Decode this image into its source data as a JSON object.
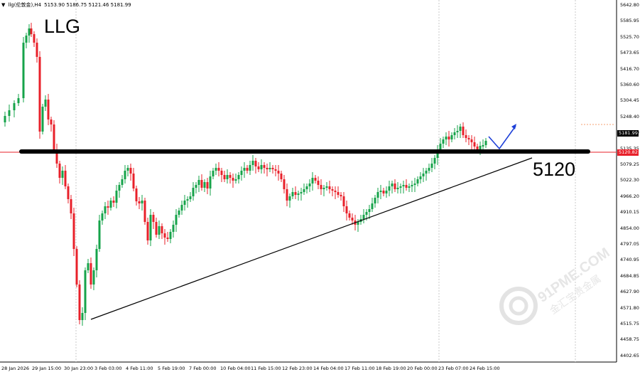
{
  "header": {
    "menu_glyph": "▼",
    "symbol_info": "llg(伦敦金),H4",
    "ohlc": "5153.90 5186.75 5121.46 5181.99"
  },
  "annotations": {
    "symbol_label": "LLG",
    "level_label": "5120"
  },
  "price_axis": {
    "ticks": [
      "5642.80",
      "5585.95",
      "5525.70",
      "5473.65",
      "5416.70",
      "5360.60",
      "5304.45",
      "5248.40",
      "5191.70",
      "5135.35",
      "5079.25",
      "5022.30",
      "4966.20",
      "4910.15",
      "4854.00",
      "4797.05",
      "4740.95",
      "4684.85",
      "4627.90",
      "4571.80",
      "4515.75",
      "4458.75",
      "4402.65"
    ],
    "current_price": "5181.99",
    "line_price": "5120.82"
  },
  "time_axis": {
    "ticks": [
      "28 Jan 2026",
      "29 Jan 15:00",
      "30 Jan 23:00",
      "3 Feb 03:00",
      "4 Feb 11:00",
      "5 Feb 19:00",
      "7 Feb 00:00",
      "10 Feb 04:00",
      "11 Feb 15:00",
      "12 Feb 23:00",
      "14 Feb 04:00",
      "17 Feb 11:00",
      "18 Feb 19:00",
      "20 Feb 00:00",
      "23 Feb 07:00",
      "24 Feb 15:00"
    ]
  },
  "colors": {
    "bull": "#16a34a",
    "bear": "#e8202a",
    "support": "#000000",
    "trendline": "#000000",
    "arrow": "#1e40d8",
    "grid": "#c8c8c8"
  },
  "watermark": {
    "text": "91PME.COM",
    "subtext": "金汇宝贵金属"
  }
}
